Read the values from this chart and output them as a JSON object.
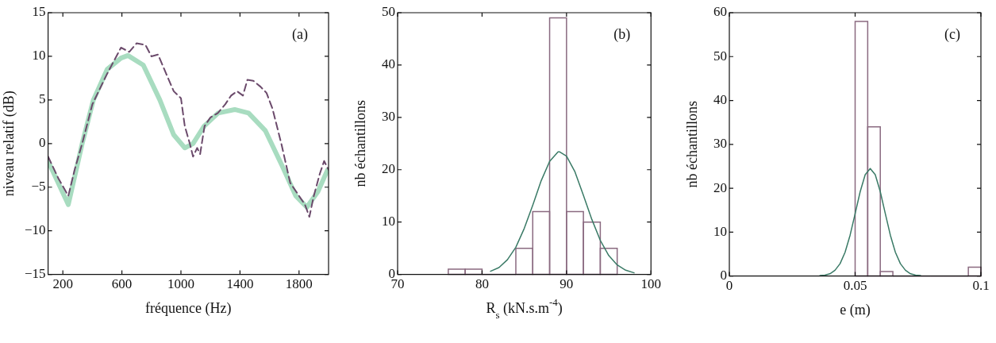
{
  "chart_data": [
    {
      "type": "line",
      "xlabel": "fréquence (Hz)",
      "ylabel": "niveau relatif (dB)",
      "annotations": [
        "(a)"
      ],
      "xlim": [
        100,
        2000
      ],
      "ylim": [
        -15,
        15
      ],
      "xticks": [
        200,
        600,
        1000,
        1400,
        1800
      ],
      "yticks": [
        {
          "value": -15,
          "label": "−15"
        },
        {
          "value": -10,
          "label": "−10"
        },
        {
          "value": -5,
          "label": "−5"
        },
        0,
        5,
        10,
        15
      ],
      "grid": false,
      "legend": false,
      "marker": "none",
      "series": [
        {
          "color": "#a8dcc0",
          "line_style": "solid",
          "x": [
            100,
            237,
            331,
            407,
            500,
            594,
            641,
            745,
            857,
            951,
            1026,
            1082,
            1157,
            1252,
            1364,
            1458,
            1571,
            1684,
            1778,
            1853,
            1928,
            1994
          ],
          "values": [
            -2,
            -7,
            0,
            5,
            8.5,
            9.8,
            10.1,
            9,
            5,
            1,
            -0.5,
            0,
            2,
            3.5,
            3.9,
            3.5,
            1.5,
            -2.5,
            -6,
            -7.3,
            -5.5,
            -3
          ]
        },
        {
          "color": "#6b4a6b",
          "line_style": "dashed",
          "x": [
            100,
            170,
            237,
            280,
            331,
            400,
            500,
            594,
            650,
            700,
            760,
            800,
            845,
            900,
            951,
            1000,
            1026,
            1060,
            1082,
            1110,
            1130,
            1160,
            1200,
            1250,
            1300,
            1340,
            1380,
            1420,
            1450,
            1490,
            1540,
            1580,
            1620,
            1680,
            1740,
            1800,
            1840,
            1870,
            1900,
            1940,
            1970,
            2000
          ],
          "values": [
            -1.5,
            -4,
            -6,
            -3,
            0,
            4.5,
            8,
            11,
            10.5,
            11.5,
            11.3,
            10,
            10.2,
            8,
            6,
            5.2,
            2,
            0,
            -1.5,
            -0.5,
            -1.2,
            2,
            3,
            3.5,
            4.5,
            5.5,
            6,
            5.5,
            7.3,
            7.2,
            6.5,
            5.8,
            4,
            0,
            -4.5,
            -6,
            -7,
            -8.4,
            -6,
            -3.5,
            -2,
            -3
          ]
        }
      ]
    },
    {
      "type": "histogram",
      "xlabel": "R$_{s}$ (kN.s.m$^{-4}$)",
      "ylabel": "nb échantillons",
      "annotations": [
        "(b)"
      ],
      "xlim": [
        70,
        100
      ],
      "ylim": [
        0,
        50
      ],
      "xticks": [
        70,
        80,
        90,
        100
      ],
      "yticks": [
        0,
        10,
        20,
        30,
        40,
        50
      ],
      "grid": false,
      "legend": false,
      "color": "#8a6a80",
      "bins": [
        76,
        78,
        80,
        82,
        84,
        86,
        88,
        90,
        92,
        94,
        96
      ],
      "values": [
        1,
        1,
        0,
        0,
        5,
        12,
        49,
        12,
        10,
        5
      ],
      "series": [
        {
          "type": "line",
          "color": "#3a7a66",
          "x": [
            81,
            82,
            83,
            84,
            85,
            86,
            87,
            88,
            89,
            89.2,
            90,
            91,
            92,
            93,
            94,
            95,
            96,
            97,
            98
          ],
          "values": [
            0.6,
            1.3,
            2.8,
            5.2,
            8.8,
            13.2,
            17.9,
            21.6,
            23.4,
            23.4,
            22.6,
            19.6,
            15.1,
            10.5,
            6.5,
            3.6,
            1.8,
            0.8,
            0.3
          ]
        }
      ]
    },
    {
      "type": "histogram",
      "xlabel": "e (m)",
      "ylabel": "nb échantillons",
      "annotations": [
        "(c)"
      ],
      "xlim": [
        0,
        0.1
      ],
      "ylim": [
        0,
        60
      ],
      "xticks": [
        0,
        0.05,
        0.1
      ],
      "yticks": [
        0,
        10,
        20,
        30,
        40,
        50,
        60
      ],
      "grid": false,
      "legend": false,
      "color": "#8a6a80",
      "bins": [
        0.05,
        0.055,
        0.06,
        0.065,
        0.07,
        0.075,
        0.08,
        0.085,
        0.09,
        0.095,
        0.1
      ],
      "values": [
        58,
        34,
        1,
        0,
        0,
        0,
        0,
        0,
        0,
        2
      ],
      "series": [
        {
          "type": "line",
          "color": "#3a7a66",
          "x": [
            0.036,
            0.038,
            0.04,
            0.042,
            0.044,
            0.046,
            0.048,
            0.05,
            0.052,
            0.054,
            0.056,
            0.058,
            0.06,
            0.062,
            0.064,
            0.066,
            0.068,
            0.07,
            0.072,
            0.074,
            0.076
          ],
          "values": [
            0.1,
            0.2,
            0.5,
            1.3,
            2.8,
            5.4,
            9.3,
            14.2,
            19.2,
            23.1,
            24.5,
            23.1,
            19.2,
            14.2,
            9.3,
            5.4,
            2.8,
            1.3,
            0.5,
            0.2,
            0.1
          ]
        }
      ]
    }
  ]
}
